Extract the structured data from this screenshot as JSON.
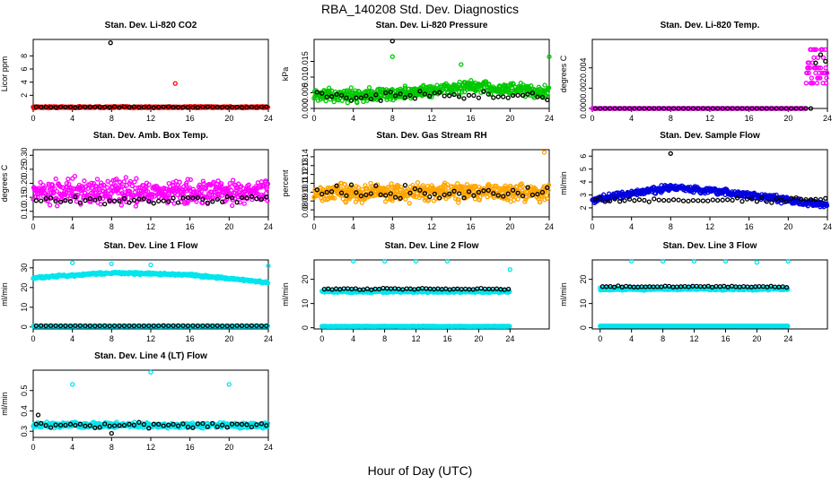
{
  "page": {
    "title": "RBA_140208  Std. Dev. Diagnostics",
    "xlabel": "Hour of Day (UTC)"
  },
  "chart_data": [
    {
      "type": "scatter",
      "title": "Stan. Dev. Li-820 CO2",
      "ylabel": "Licor ppm",
      "xlim": [
        0,
        24
      ],
      "ylim": [
        0,
        1.05
      ],
      "yticks": [
        {
          "v": 0.2,
          "label": "2"
        },
        {
          "v": 0.4,
          "label": "4"
        },
        {
          "v": 0.6,
          "label": "6"
        },
        {
          "v": 0.8,
          "label": "8"
        }
      ],
      "xticks": [
        "0",
        "4",
        "8",
        "12",
        "16",
        "20",
        "24"
      ],
      "series": [
        {
          "name": "Li-820 CO2",
          "color": "#ff0000",
          "base": 0.02,
          "spread": 0.015,
          "trend": [
            0,
            0,
            0,
            0
          ],
          "outliers": [
            [
              14.5,
              0.38
            ]
          ]
        },
        {
          "name": "hourly",
          "color": "#000000",
          "base": 0.02,
          "spread": 0.012,
          "hourly": true,
          "outliers": [
            [
              7.9,
              1.0
            ]
          ]
        }
      ]
    },
    {
      "type": "scatter",
      "title": "Stan. Dev. Li-820 Pressure",
      "ylabel": "kPa",
      "xlim": [
        0,
        24
      ],
      "ylim": [
        0,
        0.022
      ],
      "yticks": [
        {
          "v": 0,
          "label": "0.000"
        },
        {
          "v": 0.005,
          "label": "0.005"
        },
        {
          "v": 0.01,
          "label": "0.010"
        },
        {
          "v": 0.015,
          "label": "0.015"
        }
      ],
      "xticks": [
        "0",
        "4",
        "8",
        "12",
        "16",
        "20",
        "24"
      ],
      "series": [
        {
          "name": "pressure",
          "color": "#00c800",
          "base": 0.004,
          "spread": 0.003,
          "trend": [
            0,
            0.0005,
            0.003,
            0.001
          ],
          "outliers": [
            [
              8,
              0.0165
            ],
            [
              24,
              0.0165
            ],
            [
              15,
              0.014
            ]
          ]
        },
        {
          "name": "hourly",
          "color": "#000000",
          "base": 0.004,
          "spread": 0.002,
          "hourly": true,
          "outliers": [
            [
              8,
              0.0215
            ]
          ]
        }
      ]
    },
    {
      "type": "scatter",
      "title": "Stan. Dev. Li-820 Temp.",
      "ylabel": "degrees C",
      "xlim": [
        0,
        24
      ],
      "ylim": [
        0,
        0.0068
      ],
      "yticks": [
        {
          "v": 0,
          "label": "0.000"
        },
        {
          "v": 0.002,
          "label": "0.002"
        },
        {
          "v": 0.004,
          "label": "0.004"
        }
      ],
      "xticks": [
        "0",
        "4",
        "8",
        "12",
        "16",
        "20",
        "24"
      ],
      "series": [
        {
          "name": "temp",
          "color": "#ff00ff",
          "base": 0.0,
          "spread": 0.0,
          "trend": [
            0,
            0,
            0,
            0
          ],
          "tailFrom": 21.8,
          "tailMin": 0.0025,
          "tailMax": 0.0058
        },
        {
          "name": "hourly",
          "color": "#000000",
          "base": 0.0,
          "spread": 0.0,
          "hourly": true,
          "tailFrom": 22.5,
          "tailMin": 0.003,
          "tailMax": 0.0066
        }
      ]
    },
    {
      "type": "scatter",
      "title": "Stan. Dev. Amb. Box Temp.",
      "ylabel": "degrees C",
      "xlim": [
        0,
        24
      ],
      "ylim": [
        0.08,
        0.32
      ],
      "yticks": [
        {
          "v": 0.1,
          "label": "0.10"
        },
        {
          "v": 0.15,
          "label": "0.15"
        },
        {
          "v": 0.2,
          "label": "0.20"
        },
        {
          "v": 0.25,
          "label": "0.25"
        },
        {
          "v": 0.3,
          "label": "0.30"
        }
      ],
      "xticks": [
        "0",
        "4",
        "8",
        "12",
        "16",
        "20",
        "24"
      ],
      "series": [
        {
          "name": "box temp",
          "color": "#ff00ff",
          "base": 0.17,
          "spread": 0.06,
          "trend": [
            0,
            0,
            0,
            0
          ]
        },
        {
          "name": "hourly",
          "color": "#000000",
          "base": 0.14,
          "spread": 0.02,
          "hourly": true
        }
      ]
    },
    {
      "type": "scatter",
      "title": "Stan. Dev. Gas Stream RH",
      "ylabel": "percent",
      "xlim": [
        0,
        24
      ],
      "ylim": [
        0.072,
        0.148
      ],
      "yticks": [
        {
          "v": 0.08,
          "label": "0.08"
        },
        {
          "v": 0.09,
          "label": "0.09"
        },
        {
          "v": 0.1,
          "label": "0.10"
        },
        {
          "v": 0.11,
          "label": "0.11"
        },
        {
          "v": 0.12,
          "label": "0.12"
        },
        {
          "v": 0.13,
          "label": "0.13"
        },
        {
          "v": 0.14,
          "label": "0.14"
        }
      ],
      "xticks": [
        "0",
        "4",
        "8",
        "12",
        "16",
        "20",
        "24"
      ],
      "series": [
        {
          "name": "rh",
          "color": "#ffa500",
          "base": 0.1,
          "spread": 0.014,
          "trend": [
            0,
            0,
            0,
            0
          ],
          "outliers": [
            [
              23.5,
              0.145
            ]
          ]
        },
        {
          "name": "hourly",
          "color": "#000000",
          "base": 0.1,
          "spread": 0.01,
          "hourly": true
        }
      ]
    },
    {
      "type": "scatter",
      "title": "Stan. Dev. Sample Flow",
      "ylabel": "ml/min",
      "xlim": [
        0,
        24
      ],
      "ylim": [
        1.3,
        6.5
      ],
      "yticks": [
        {
          "v": 2,
          "label": "2"
        },
        {
          "v": 3,
          "label": "3"
        },
        {
          "v": 4,
          "label": "4"
        },
        {
          "v": 5,
          "label": "5"
        },
        {
          "v": 6,
          "label": "6"
        }
      ],
      "xticks": [
        "0",
        "4",
        "8",
        "12",
        "16",
        "20",
        "24"
      ],
      "series": [
        {
          "name": "sample flow",
          "color": "#0000e0",
          "base": 2.6,
          "spread": 0.35,
          "trend": [
            0,
            1.0,
            0.4,
            -0.4
          ]
        },
        {
          "name": "hourly",
          "color": "#000000",
          "base": 2.6,
          "spread": 0.25,
          "hourly": true,
          "outliers": [
            [
              8,
              6.2
            ]
          ]
        }
      ]
    },
    {
      "type": "scatter",
      "title": "Stan. Dev. Line 1 Flow",
      "ylabel": "ml/min",
      "xlim": [
        0,
        24
      ],
      "ylim": [
        -1,
        34
      ],
      "yticks": [
        {
          "v": 0,
          "label": "0"
        },
        {
          "v": 10,
          "label": "10"
        },
        {
          "v": 20,
          "label": "20"
        },
        {
          "v": 30,
          "label": "30"
        }
      ],
      "xticks": [
        "0",
        "4",
        "8",
        "12",
        "16",
        "20",
        "24"
      ],
      "series": [
        {
          "name": "line1",
          "color": "#00e5ee",
          "base": 25,
          "spread": 0.8,
          "trend": [
            0,
            2.5,
            1.5,
            -2.5
          ],
          "outliers": [
            [
              4,
              32.5
            ],
            [
              8,
              32
            ],
            [
              12,
              31.5
            ],
            [
              24,
              31
            ]
          ]
        },
        {
          "name": "line1 low",
          "color": "#00e5ee",
          "base": 0.4,
          "spread": 0.1,
          "trend": [
            0,
            0,
            0,
            0
          ]
        },
        {
          "name": "hourly",
          "color": "#000000",
          "base": 0.6,
          "spread": 0.1,
          "hourly": true
        }
      ]
    },
    {
      "type": "scatter",
      "title": "Stan. Dev. Line 2 Flow",
      "ylabel": "ml/min",
      "xlim": [
        -1,
        29
      ],
      "ylim": [
        -0.5,
        28
      ],
      "yticks": [
        {
          "v": 0,
          "label": "0"
        },
        {
          "v": 10,
          "label": "10"
        },
        {
          "v": 20,
          "label": "20"
        }
      ],
      "xticks": [
        "0",
        "4",
        "8",
        "12",
        "16",
        "20",
        "24"
      ],
      "series": [
        {
          "name": "line2",
          "color": "#00e5ee",
          "base": 15,
          "spread": 0.7,
          "trend": [
            0,
            0,
            0,
            0
          ],
          "outliers": [
            [
              4,
              27.5
            ],
            [
              8,
              27.5
            ],
            [
              12,
              27.5
            ],
            [
              16,
              27.5
            ],
            [
              24,
              24
            ]
          ]
        },
        {
          "name": "line2 low",
          "color": "#00e5ee",
          "base": 0.6,
          "spread": 0.1,
          "trend": [
            0,
            0,
            0,
            0
          ]
        },
        {
          "name": "hourly",
          "color": "#000000",
          "base": 16,
          "spread": 0.5,
          "hourly": true
        }
      ]
    },
    {
      "type": "scatter",
      "title": "Stan. Dev. Line 3 Flow",
      "ylabel": "ml/min",
      "xlim": [
        -1,
        29
      ],
      "ylim": [
        -0.5,
        28
      ],
      "yticks": [
        {
          "v": 0,
          "label": "0"
        },
        {
          "v": 10,
          "label": "10"
        },
        {
          "v": 20,
          "label": "20"
        }
      ],
      "xticks": [
        "0",
        "4",
        "8",
        "12",
        "16",
        "20",
        "24"
      ],
      "series": [
        {
          "name": "line3",
          "color": "#00e5ee",
          "base": 16,
          "spread": 0.7,
          "trend": [
            0,
            0,
            0,
            0
          ],
          "outliers": [
            [
              4,
              27.5
            ],
            [
              8,
              27.5
            ],
            [
              12,
              27.5
            ],
            [
              16,
              27.5
            ],
            [
              20,
              27
            ],
            [
              24,
              27.5
            ]
          ]
        },
        {
          "name": "line3 low",
          "color": "#00e5ee",
          "base": 0.7,
          "spread": 0.1,
          "trend": [
            0,
            0,
            0,
            0
          ]
        },
        {
          "name": "hourly",
          "color": "#000000",
          "base": 17,
          "spread": 0.4,
          "hourly": true
        }
      ]
    },
    {
      "type": "scatter",
      "title": "Stan. Dev. Line 4 (LT) Flow",
      "ylabel": "ml/min",
      "xlim": [
        0,
        24
      ],
      "ylim": [
        0.27,
        0.6
      ],
      "yticks": [
        {
          "v": 0.3,
          "label": "0.3"
        },
        {
          "v": 0.4,
          "label": "0.4"
        },
        {
          "v": 0.5,
          "label": "0.5"
        }
      ],
      "xticks": [
        "0",
        "4",
        "8",
        "12",
        "16",
        "20",
        "24"
      ],
      "series": [
        {
          "name": "line4",
          "color": "#00e5ee",
          "base": 0.33,
          "spread": 0.018,
          "trend": [
            0,
            0,
            0,
            0
          ],
          "outliers": [
            [
              4,
              0.53
            ],
            [
              12,
              0.59
            ],
            [
              20,
              0.53
            ]
          ]
        },
        {
          "name": "hourly",
          "color": "#000000",
          "base": 0.33,
          "spread": 0.018,
          "hourly": true,
          "outliers": [
            [
              0.5,
              0.38
            ],
            [
              8,
              0.29
            ]
          ]
        }
      ]
    }
  ]
}
